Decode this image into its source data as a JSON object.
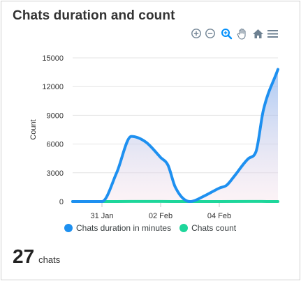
{
  "card": {
    "title": "Chats duration and count"
  },
  "toolbar": {
    "icons": [
      "zoom-in-icon",
      "zoom-out-icon",
      "zoom-selection-icon",
      "pan-hand-icon",
      "reset-home-icon",
      "menu-icon"
    ]
  },
  "summary": {
    "count": "27",
    "unit": "chats"
  },
  "colors": {
    "duration": "#1e90f0",
    "count": "#1ed69b"
  },
  "chart_data": {
    "type": "area",
    "title": "",
    "ylabel": "Count",
    "ylim": [
      0,
      15000
    ],
    "yticks": [
      0,
      3000,
      6000,
      9000,
      12000,
      15000
    ],
    "x_tick_labels": [
      "31 Jan",
      "02 Feb",
      "04 Feb"
    ],
    "x_tick_days": [
      1,
      3,
      5
    ],
    "x_range_days": [
      0,
      7
    ],
    "legend_position": "bottom",
    "series": [
      {
        "name": "Chats duration in minutes",
        "x_days": [
          0,
          1,
          1.5,
          2,
          2.5,
          3,
          3.25,
          3.5,
          4,
          4.5,
          5,
          5.25,
          5.5,
          6,
          6.25,
          6.5,
          7
        ],
        "values": [
          0,
          0,
          3000,
          6800,
          6200,
          4600,
          3800,
          1500,
          0,
          600,
          1400,
          1700,
          2600,
          4500,
          5200,
          9500,
          13800
        ]
      },
      {
        "name": "Chats count",
        "x_days": [
          0,
          1,
          2,
          3,
          4,
          5,
          6,
          7
        ],
        "values": [
          1,
          0,
          8,
          5,
          0,
          4,
          5,
          4
        ]
      }
    ]
  }
}
